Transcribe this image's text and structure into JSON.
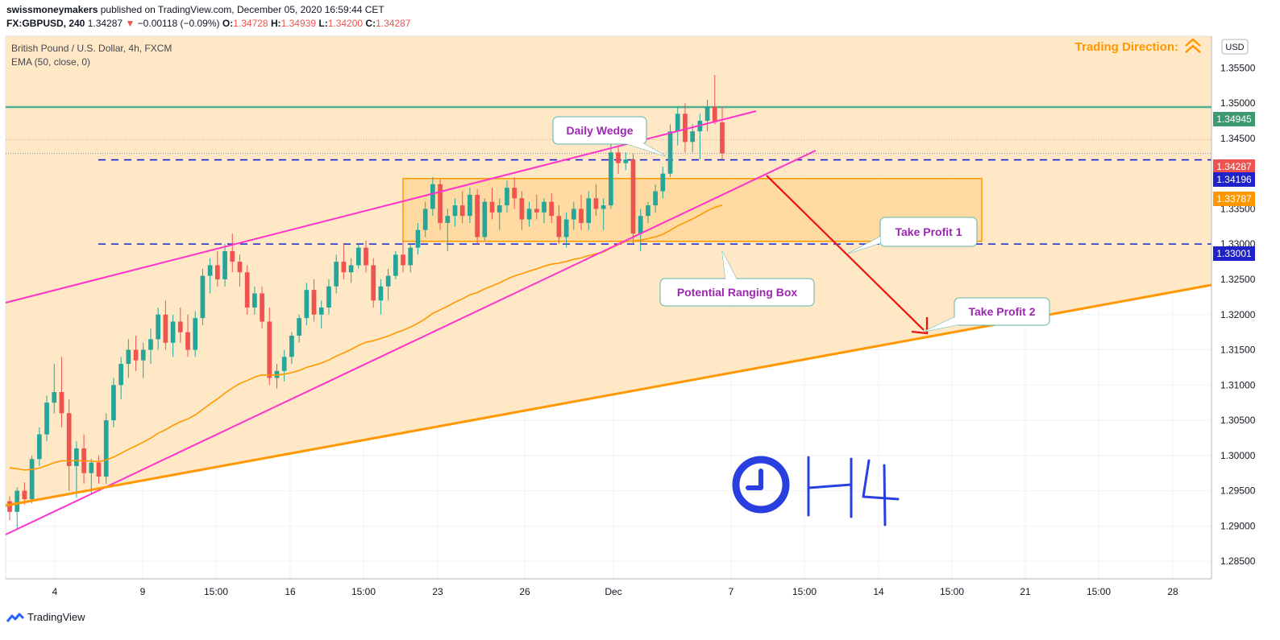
{
  "header": {
    "publisher": "swissmoneymakers",
    "published_text": "published on TradingView.com, December 05, 2020 16:59:44 CET",
    "symbol": "FX:GBPUSD, 240",
    "last": "1.34287",
    "change": "−0.00118 (−0.09%)",
    "o_label": "O:",
    "o": "1.34728",
    "h_label": "H:",
    "h": "1.34939",
    "l_label": "L:",
    "l": "1.34200",
    "c_label": "C:",
    "c": "1.34287"
  },
  "legend": {
    "instrument": "British Pound / U.S. Dollar, 4h, FXCM",
    "indicator": "EMA (50, close, 0)"
  },
  "annotations": {
    "trading_direction": "Trading Direction:",
    "daily_wedge": "Daily Wedge",
    "take_profit_1": "Take Profit 1",
    "take_profit_2": "Take Profit 2",
    "ranging_box": "Potential Ranging Box",
    "timeframe_text": "H4"
  },
  "footer": {
    "brand": "TradingView"
  },
  "colors": {
    "up": "#26a69a",
    "down": "#ef5350",
    "wedge": "#ff33cc",
    "support": "#ff9800",
    "fill": "#ffe0b2",
    "dashed": "#1e22c8",
    "hline": "#4caf8f",
    "arrow": "#ee1111",
    "label_text": "#9c27b0",
    "clock": "#2a3fe0"
  },
  "chart_data": {
    "type": "candlestick",
    "currency": "USD",
    "ylim": [
      1.2825,
      1.3595
    ],
    "price_ticks": [
      "1.35500",
      "1.35000",
      "1.34500",
      "1.34000",
      "1.33500",
      "1.33000",
      "1.32500",
      "1.32000",
      "1.31500",
      "1.31000",
      "1.30500",
      "1.30000",
      "1.29500",
      "1.29000",
      "1.28500"
    ],
    "x_labels": [
      "4",
      "9",
      "15:00",
      "16",
      "15:00",
      "23",
      "26",
      "Dec",
      "7",
      "15:00",
      "14",
      "15:00",
      "21",
      "15:00",
      "28"
    ],
    "price_badges": [
      {
        "label": "1.34945",
        "color": "#3d9970"
      },
      {
        "label": "1.34287",
        "color": "#ef5350"
      },
      {
        "label": "1.34196",
        "color": "#1e22c8"
      },
      {
        "label": "1.33787",
        "color": "#ff9800"
      },
      {
        "label": "1.33001",
        "color": "#1e22c8"
      }
    ],
    "levels": {
      "resistance": 1.34945,
      "upper_dashed": 1.34196,
      "lower_dashed": 1.33001,
      "box_top": 1.3393,
      "box_bottom": 1.3304
    },
    "candles": [
      [
        1.2935,
        1.2942,
        1.2908,
        1.292
      ],
      [
        1.292,
        1.2955,
        1.2895,
        1.295
      ],
      [
        1.295,
        1.2962,
        1.293,
        1.2938
      ],
      [
        1.2938,
        1.3,
        1.2932,
        1.2995
      ],
      [
        1.2995,
        1.304,
        1.2985,
        1.303
      ],
      [
        1.303,
        1.3085,
        1.302,
        1.3075
      ],
      [
        1.3075,
        1.313,
        1.306,
        1.309
      ],
      [
        1.309,
        1.314,
        1.304,
        1.306
      ],
      [
        1.306,
        1.308,
        1.295,
        1.2985
      ],
      [
        1.2985,
        1.302,
        1.294,
        1.301
      ],
      [
        1.301,
        1.303,
        1.296,
        1.2975
      ],
      [
        1.2975,
        1.2995,
        1.2945,
        1.299
      ],
      [
        1.299,
        1.3,
        1.296,
        1.297
      ],
      [
        1.297,
        1.306,
        1.296,
        1.305
      ],
      [
        1.305,
        1.311,
        1.304,
        1.31
      ],
      [
        1.31,
        1.314,
        1.308,
        1.313
      ],
      [
        1.313,
        1.3165,
        1.311,
        1.315
      ],
      [
        1.315,
        1.317,
        1.312,
        1.3135
      ],
      [
        1.3135,
        1.316,
        1.311,
        1.315
      ],
      [
        1.315,
        1.318,
        1.313,
        1.3165
      ],
      [
        1.3165,
        1.321,
        1.315,
        1.32
      ],
      [
        1.32,
        1.322,
        1.315,
        1.316
      ],
      [
        1.316,
        1.32,
        1.314,
        1.319
      ],
      [
        1.319,
        1.321,
        1.316,
        1.3175
      ],
      [
        1.3175,
        1.32,
        1.314,
        1.315
      ],
      [
        1.315,
        1.3205,
        1.314,
        1.3195
      ],
      [
        1.3195,
        1.3265,
        1.3185,
        1.3255
      ],
      [
        1.3255,
        1.328,
        1.323,
        1.327
      ],
      [
        1.327,
        1.329,
        1.324,
        1.325
      ],
      [
        1.325,
        1.33,
        1.324,
        1.329
      ],
      [
        1.329,
        1.3315,
        1.326,
        1.3275
      ],
      [
        1.3275,
        1.3285,
        1.324,
        1.326
      ],
      [
        1.326,
        1.327,
        1.32,
        1.321
      ],
      [
        1.321,
        1.324,
        1.32,
        1.323
      ],
      [
        1.323,
        1.324,
        1.318,
        1.319
      ],
      [
        1.319,
        1.321,
        1.31,
        1.311
      ],
      [
        1.311,
        1.313,
        1.3095,
        1.312
      ],
      [
        1.312,
        1.315,
        1.3105,
        1.314
      ],
      [
        1.314,
        1.3175,
        1.313,
        1.317
      ],
      [
        1.317,
        1.32,
        1.316,
        1.3195
      ],
      [
        1.3195,
        1.3245,
        1.3185,
        1.3235
      ],
      [
        1.3235,
        1.325,
        1.319,
        1.32
      ],
      [
        1.32,
        1.322,
        1.318,
        1.321
      ],
      [
        1.321,
        1.325,
        1.32,
        1.324
      ],
      [
        1.324,
        1.3285,
        1.323,
        1.3275
      ],
      [
        1.3275,
        1.33,
        1.325,
        1.326
      ],
      [
        1.326,
        1.328,
        1.3245,
        1.327
      ],
      [
        1.327,
        1.33,
        1.3265,
        1.3295
      ],
      [
        1.3295,
        1.3305,
        1.326,
        1.327
      ],
      [
        1.327,
        1.328,
        1.321,
        1.322
      ],
      [
        1.322,
        1.325,
        1.32,
        1.324
      ],
      [
        1.324,
        1.3265,
        1.322,
        1.3255
      ],
      [
        1.3255,
        1.329,
        1.325,
        1.3285
      ],
      [
        1.3285,
        1.3305,
        1.326,
        1.327
      ],
      [
        1.327,
        1.33,
        1.326,
        1.3295
      ],
      [
        1.3295,
        1.333,
        1.3285,
        1.332
      ],
      [
        1.332,
        1.336,
        1.331,
        1.335
      ],
      [
        1.335,
        1.3395,
        1.334,
        1.3385
      ],
      [
        1.3385,
        1.3392,
        1.332,
        1.333
      ],
      [
        1.333,
        1.335,
        1.329,
        1.334
      ],
      [
        1.334,
        1.3365,
        1.3325,
        1.3355
      ],
      [
        1.3355,
        1.3375,
        1.333,
        1.334
      ],
      [
        1.334,
        1.338,
        1.333,
        1.337
      ],
      [
        1.337,
        1.3378,
        1.33,
        1.331
      ],
      [
        1.331,
        1.3365,
        1.3305,
        1.336
      ],
      [
        1.336,
        1.338,
        1.3335,
        1.3345
      ],
      [
        1.3345,
        1.3365,
        1.332,
        1.3355
      ],
      [
        1.3355,
        1.339,
        1.3345,
        1.338
      ],
      [
        1.338,
        1.3395,
        1.335,
        1.3365
      ],
      [
        1.3365,
        1.3375,
        1.332,
        1.3335
      ],
      [
        1.3335,
        1.336,
        1.3325,
        1.335
      ],
      [
        1.335,
        1.337,
        1.3335,
        1.3345
      ],
      [
        1.3345,
        1.3365,
        1.333,
        1.336
      ],
      [
        1.336,
        1.3372,
        1.333,
        1.334
      ],
      [
        1.334,
        1.3355,
        1.33,
        1.331
      ],
      [
        1.331,
        1.3345,
        1.3295,
        1.3335
      ],
      [
        1.3335,
        1.336,
        1.332,
        1.335
      ],
      [
        1.335,
        1.337,
        1.332,
        1.333
      ],
      [
        1.333,
        1.3375,
        1.332,
        1.3365
      ],
      [
        1.3365,
        1.3385,
        1.334,
        1.335
      ],
      [
        1.335,
        1.3365,
        1.332,
        1.3355
      ],
      [
        1.3355,
        1.3445,
        1.335,
        1.343
      ],
      [
        1.343,
        1.344,
        1.34,
        1.3415
      ],
      [
        1.3415,
        1.343,
        1.3405,
        1.342
      ],
      [
        1.342,
        1.3428,
        1.33,
        1.3315
      ],
      [
        1.3315,
        1.335,
        1.329,
        1.334
      ],
      [
        1.334,
        1.336,
        1.333,
        1.3355
      ],
      [
        1.3355,
        1.3385,
        1.3345,
        1.3375
      ],
      [
        1.3375,
        1.341,
        1.3365,
        1.34
      ],
      [
        1.34,
        1.347,
        1.3395,
        1.346
      ],
      [
        1.346,
        1.3495,
        1.344,
        1.3485
      ],
      [
        1.3485,
        1.35,
        1.343,
        1.3445
      ],
      [
        1.3445,
        1.347,
        1.343,
        1.346
      ],
      [
        1.346,
        1.3485,
        1.342,
        1.3475
      ],
      [
        1.3475,
        1.3505,
        1.346,
        1.3495
      ],
      [
        1.3495,
        1.354,
        1.347,
        1.3473
      ],
      [
        1.34728,
        1.34939,
        1.342,
        1.34287
      ]
    ]
  }
}
